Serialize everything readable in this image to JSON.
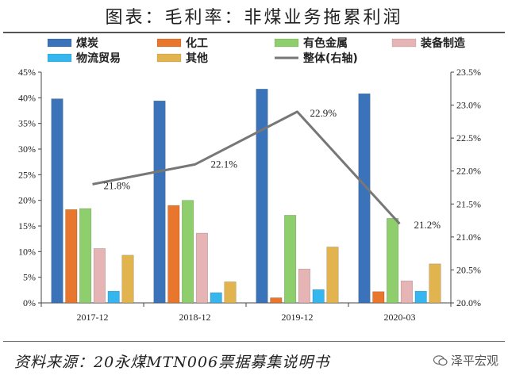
{
  "title": "图表：毛利率：非煤业务拖累利润",
  "source": "资料来源：20永煤MTN006票据募集说明书",
  "brand": "泽平宏观",
  "chart_data": {
    "type": "bar",
    "categories": [
      "2017-12",
      "2018-12",
      "2019-12",
      "2020-03"
    ],
    "series": [
      {
        "name": "煤炭",
        "color": "#3a73b9",
        "values": [
          39.8,
          39.4,
          41.7,
          40.8
        ]
      },
      {
        "name": "化工",
        "color": "#e8762c",
        "values": [
          18.2,
          19.0,
          1.0,
          2.2
        ]
      },
      {
        "name": "有色金属",
        "color": "#8fce6c",
        "values": [
          18.4,
          20.0,
          17.1,
          16.5
        ]
      },
      {
        "name": "装备制造",
        "color": "#e6b4b4",
        "values": [
          10.6,
          13.6,
          6.6,
          4.3
        ]
      },
      {
        "name": "物流贸易",
        "color": "#36b6ee",
        "values": [
          2.3,
          2.0,
          2.6,
          2.3
        ]
      },
      {
        "name": "其他",
        "color": "#e2b44f",
        "values": [
          9.3,
          4.1,
          10.9,
          7.6
        ]
      }
    ],
    "line": {
      "name": "整体(右轴)",
      "color": "#777777",
      "values": [
        21.8,
        22.1,
        22.9,
        21.2
      ],
      "labels": [
        "21.8%",
        "22.1%",
        "22.9%",
        "21.2%"
      ]
    },
    "left_axis": {
      "min": 0,
      "max": 45,
      "ticks": [
        "0%",
        "5%",
        "10%",
        "15%",
        "20%",
        "25%",
        "30%",
        "35%",
        "40%",
        "45%"
      ]
    },
    "right_axis": {
      "min": 20.0,
      "max": 23.5,
      "ticks": [
        "20.0%",
        "20.5%",
        "21.0%",
        "21.5%",
        "22.0%",
        "22.5%",
        "23.0%",
        "23.5%"
      ]
    },
    "legend_position": "top"
  }
}
